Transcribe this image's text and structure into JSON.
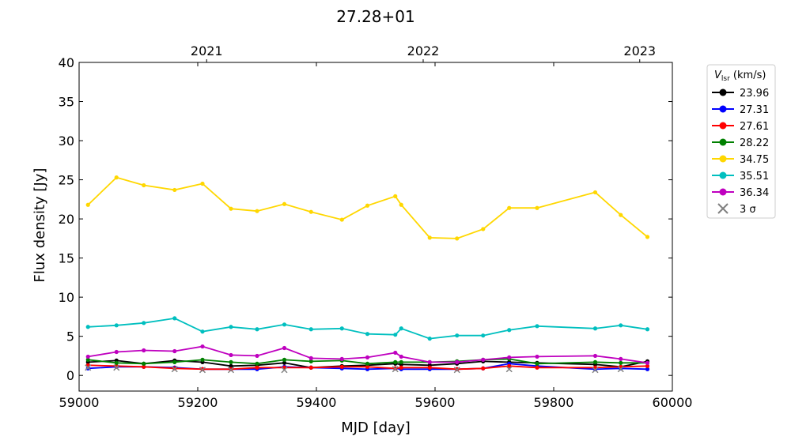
{
  "chart_data": {
    "type": "line",
    "title": "27.28+01",
    "xlabel": "MJD [day]",
    "ylabel": "Flux density [Jy]",
    "xlim": [
      59000,
      60000
    ],
    "ylim": [
      -2,
      40
    ],
    "xticks": [
      59000,
      59200,
      59400,
      59600,
      59800,
      60000
    ],
    "yticks": [
      0,
      5,
      10,
      15,
      20,
      25,
      30,
      35,
      40
    ],
    "top_axis": {
      "labels": [
        "2021",
        "2022",
        "2023"
      ],
      "mjd": [
        59215,
        59580,
        59945
      ]
    },
    "grid": false,
    "legend": {
      "title": "V_lsr (km/s)",
      "title_main": "V",
      "title_sub": "lsr",
      "title_unit": " (km/s)",
      "placement": "outside-right",
      "limit_label": "3 σ"
    },
    "x": [
      59015,
      59063,
      59109,
      59161,
      59208,
      59256,
      59300,
      59346,
      59391,
      59443,
      59486,
      59533,
      59543,
      59591,
      59637,
      59681,
      59725,
      59772,
      59870,
      59913,
      59958
    ],
    "series": [
      {
        "name": "23.96",
        "color": "#000000",
        "values": [
          1.7,
          1.9,
          1.5,
          1.9,
          1.7,
          1.2,
          1.3,
          1.6,
          1.0,
          1.2,
          1.3,
          1.5,
          1.4,
          1.3,
          1.5,
          1.8,
          1.7,
          1.6,
          1.4,
          1.1,
          1.8
        ]
      },
      {
        "name": "27.31",
        "color": "#0000ff",
        "values": [
          0.9,
          1.1,
          1.1,
          1.0,
          0.8,
          0.8,
          0.8,
          1.1,
          1.0,
          0.9,
          0.8,
          0.9,
          0.8,
          0.8,
          0.8,
          0.9,
          1.5,
          1.2,
          0.8,
          0.9,
          0.8
        ]
      },
      {
        "name": "27.61",
        "color": "#ff0000",
        "values": [
          1.3,
          1.2,
          1.1,
          0.9,
          0.8,
          0.8,
          1.0,
          1.0,
          1.0,
          1.1,
          1.1,
          0.9,
          1.0,
          1.0,
          0.8,
          0.9,
          1.2,
          1.0,
          1.0,
          1.1,
          1.2
        ]
      },
      {
        "name": "28.22",
        "color": "#008000",
        "values": [
          2.0,
          1.6,
          1.5,
          1.7,
          2.0,
          1.7,
          1.5,
          2.0,
          1.8,
          1.9,
          1.5,
          1.7,
          1.7,
          1.7,
          1.8,
          2.0,
          2.1,
          1.5,
          1.7,
          1.6,
          1.6
        ]
      },
      {
        "name": "34.75",
        "color": "#ffd700",
        "values": [
          21.8,
          25.3,
          24.3,
          23.7,
          24.5,
          21.3,
          21.0,
          21.9,
          20.9,
          19.9,
          21.7,
          22.9,
          21.8,
          17.6,
          17.5,
          18.7,
          21.4,
          21.4,
          23.4,
          20.5,
          17.7
        ]
      },
      {
        "name": "35.51",
        "color": "#00bfbf",
        "values": [
          6.2,
          6.4,
          6.7,
          7.3,
          5.6,
          6.2,
          5.9,
          6.5,
          5.9,
          6.0,
          5.3,
          5.2,
          6.0,
          4.7,
          5.1,
          5.1,
          5.8,
          6.3,
          6.0,
          6.4,
          5.9
        ]
      },
      {
        "name": "36.34",
        "color": "#bf00bf",
        "values": [
          2.4,
          3.0,
          3.2,
          3.1,
          3.7,
          2.6,
          2.5,
          3.5,
          2.2,
          2.1,
          2.3,
          2.9,
          2.4,
          1.7,
          1.7,
          2.0,
          2.3,
          2.4,
          2.5,
          2.1,
          1.6
        ]
      }
    ],
    "limits_3sigma": [
      {
        "x": 59015,
        "y": 1.0
      },
      {
        "x": 59063,
        "y": 1.0
      },
      {
        "x": 59161,
        "y": 0.8
      },
      {
        "x": 59208,
        "y": 0.7
      },
      {
        "x": 59256,
        "y": 0.7
      },
      {
        "x": 59346,
        "y": 0.7
      },
      {
        "x": 59533,
        "y": 0.8
      },
      {
        "x": 59637,
        "y": 0.7
      },
      {
        "x": 59725,
        "y": 0.8
      },
      {
        "x": 59870,
        "y": 0.7
      },
      {
        "x": 59913,
        "y": 0.8
      }
    ],
    "limit_color": "#808080"
  }
}
